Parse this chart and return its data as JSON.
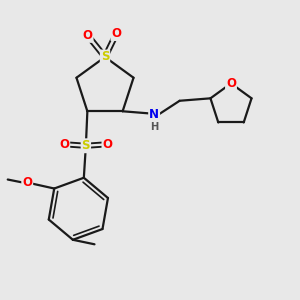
{
  "bg_color": "#e8e8e8",
  "fig_size": [
    3.0,
    3.0
  ],
  "dpi": 100,
  "atom_colors": {
    "S": "#cccc00",
    "O": "#ff0000",
    "N": "#0000ee",
    "C": "#000000",
    "H": "#555555"
  },
  "bond_color": "#1a1a1a",
  "bond_width": 1.6,
  "font_size_atom": 8.5,
  "bg_hex": "#e8e8e8"
}
